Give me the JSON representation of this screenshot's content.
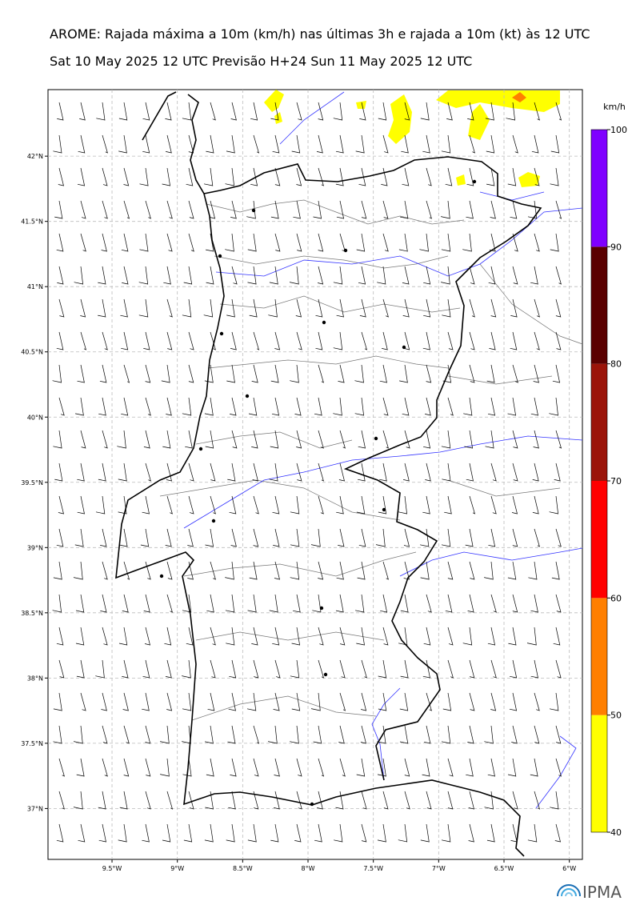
{
  "title": "AROME: Rajada máxima a 10m (km/h) nas últimas 3h e rajada a 10m (kt) às 12 UTC",
  "subtitle": "Sat 10 May 2025 12 UTC Previsão H+24 Sun 11 May 2025 12 UTC",
  "map": {
    "lat_range": [
      36.61,
      42.51
    ],
    "lon_range": [
      -9.99,
      -5.9
    ],
    "lat_ticks": [
      {
        "value": 42,
        "label": "42°N"
      },
      {
        "value": 41.5,
        "label": "41.5°N"
      },
      {
        "value": 41,
        "label": "41°N"
      },
      {
        "value": 40.5,
        "label": "40.5°N"
      },
      {
        "value": 40,
        "label": "40°N"
      },
      {
        "value": 39.5,
        "label": "39.5°N"
      },
      {
        "value": 39,
        "label": "39°N"
      },
      {
        "value": 38.5,
        "label": "38.5°N"
      },
      {
        "value": 38,
        "label": "38°N"
      },
      {
        "value": 37.5,
        "label": "37.5°N"
      },
      {
        "value": 37,
        "label": "37°N"
      }
    ],
    "lon_ticks": [
      {
        "value": -9.5,
        "label": "9.5°W"
      },
      {
        "value": -9,
        "label": "9°W"
      },
      {
        "value": -8.5,
        "label": "8.5°W"
      },
      {
        "value": -8,
        "label": "8°W"
      },
      {
        "value": -7.5,
        "label": "7.5°W"
      },
      {
        "value": -7,
        "label": "7°W"
      },
      {
        "value": -6.5,
        "label": "6.5°W"
      },
      {
        "value": -6,
        "label": "6°W"
      }
    ],
    "grid": true
  },
  "colorbar": {
    "unit": "km/h",
    "levels": [
      40,
      50,
      60,
      70,
      80,
      90,
      100
    ],
    "colors": [
      "#ffff00",
      "#ff7f00",
      "#ff0000",
      "#9b1409",
      "#5a0000",
      "#7f00ff"
    ]
  },
  "logo": "IPMA"
}
